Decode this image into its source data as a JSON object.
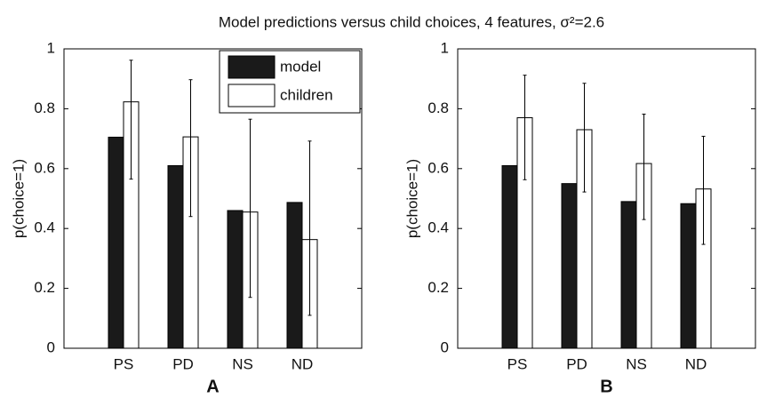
{
  "title": "Model predictions versus child choices, 4 features, σ²=2.6",
  "chart_data": [
    {
      "type": "bar",
      "xlabel": "A",
      "ylabel": "p(choice=1)",
      "categories": [
        "PS",
        "PD",
        "NS",
        "ND"
      ],
      "series": [
        {
          "name": "model",
          "color": "#1a1a1a",
          "values": [
            0.705,
            0.61,
            0.46,
            0.487
          ]
        },
        {
          "name": "children",
          "color": "#ffffff",
          "values": [
            0.823,
            0.706,
            0.455,
            0.363
          ],
          "error_low": [
            0.565,
            0.44,
            0.17,
            0.11
          ],
          "error_high": [
            0.962,
            0.897,
            0.765,
            0.692
          ]
        }
      ],
      "ylim": [
        0,
        1
      ],
      "yticks": [
        0,
        0.2,
        0.4,
        0.6,
        0.8,
        1
      ],
      "legend": "upper right"
    },
    {
      "type": "bar",
      "xlabel": "B",
      "ylabel": "p(choice=1)",
      "categories": [
        "PS",
        "PD",
        "NS",
        "ND"
      ],
      "series": [
        {
          "color": "#1a1a1a",
          "values": [
            0.61,
            0.55,
            0.49,
            0.483
          ]
        },
        {
          "color": "#ffffff",
          "values": [
            0.77,
            0.73,
            0.617,
            0.532
          ],
          "error_low": [
            0.563,
            0.522,
            0.43,
            0.347
          ],
          "error_high": [
            0.912,
            0.885,
            0.782,
            0.708
          ]
        }
      ],
      "ylim": [
        0,
        1
      ],
      "yticks": [
        0,
        0.2,
        0.4,
        0.6,
        0.8,
        1
      ]
    }
  ]
}
